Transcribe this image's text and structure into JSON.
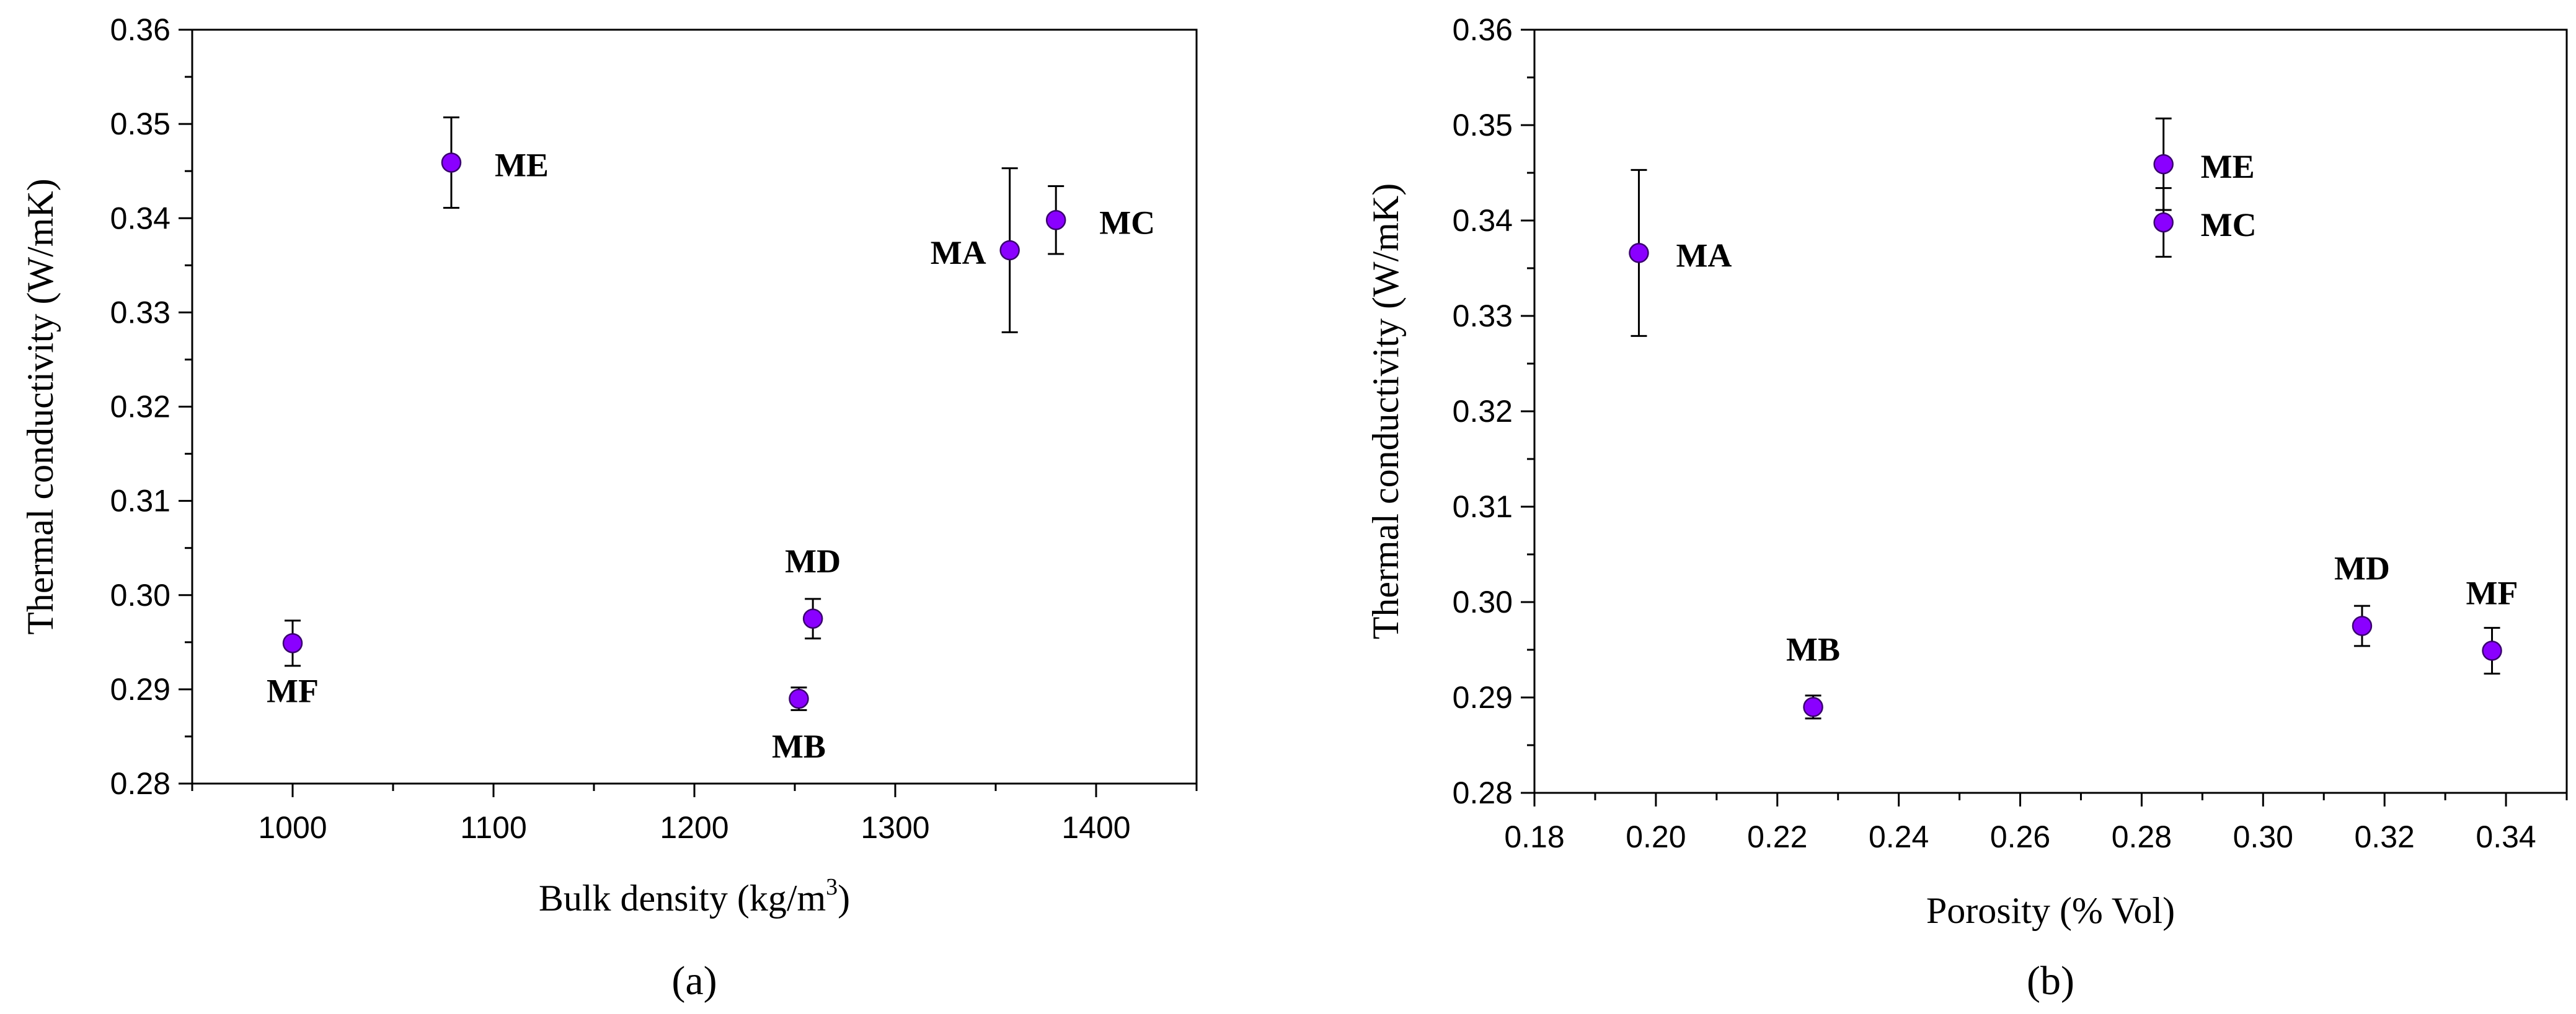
{
  "chart_data": [
    {
      "type": "scatter",
      "panel_label": "(a)",
      "xlabel": "Bulk density (kg/m",
      "xlabel_sup": "3",
      "xlabel_close": ")",
      "ylabel": "Thermal conductivity (W/mK)",
      "xlim": [
        950,
        1450
      ],
      "ylim": [
        0.28,
        0.36
      ],
      "x_ticks": [
        1000,
        1100,
        1200,
        1300,
        1400
      ],
      "x_tick_labels": [
        "1000",
        "1100",
        "1200",
        "1300",
        "1400"
      ],
      "y_ticks": [
        0.28,
        0.29,
        0.3,
        0.31,
        0.32,
        0.33,
        0.34,
        0.35,
        0.36
      ],
      "y_tick_labels": [
        "0.28",
        "0.29",
        "0.30",
        "0.31",
        "0.32",
        "0.33",
        "0.34",
        "0.35",
        "0.36"
      ],
      "marker_color": "#8A00FF",
      "points": [
        {
          "label": "MF",
          "x": 1000,
          "y": 0.2949,
          "err": 0.0024,
          "label_pos": "below"
        },
        {
          "label": "ME",
          "x": 1079,
          "y": 0.3459,
          "err": 0.0048,
          "label_pos": "right"
        },
        {
          "label": "MB",
          "x": 1252,
          "y": 0.289,
          "err": 0.0012,
          "label_pos": "below"
        },
        {
          "label": "MD",
          "x": 1259,
          "y": 0.2975,
          "err": 0.0021,
          "label_pos": "above"
        },
        {
          "label": "MA",
          "x": 1357,
          "y": 0.3366,
          "err": 0.0087,
          "label_pos": "left"
        },
        {
          "label": "MC",
          "x": 1380,
          "y": 0.3398,
          "err": 0.0036,
          "label_pos": "right"
        }
      ]
    },
    {
      "type": "scatter",
      "panel_label": "(b)",
      "xlabel": "Porosity (% Vol)",
      "ylabel": "Thermal conductivity (W/mK)",
      "xlim": [
        0.18,
        0.35
      ],
      "ylim": [
        0.28,
        0.36
      ],
      "x_ticks": [
        0.18,
        0.2,
        0.22,
        0.24,
        0.26,
        0.28,
        0.3,
        0.32,
        0.34
      ],
      "x_tick_labels": [
        "0.18",
        "0.20",
        "0.22",
        "0.24",
        "0.26",
        "0.28",
        "0.30",
        "0.32",
        "0.34"
      ],
      "y_ticks": [
        0.28,
        0.29,
        0.3,
        0.31,
        0.32,
        0.33,
        0.34,
        0.35,
        0.36
      ],
      "y_tick_labels": [
        "0.28",
        "0.29",
        "0.30",
        "0.31",
        "0.32",
        "0.33",
        "0.34",
        "0.35",
        "0.36"
      ],
      "marker_color": "#8A00FF",
      "points": [
        {
          "label": "MA",
          "x": 0.1972,
          "y": 0.3366,
          "err": 0.0087,
          "label_pos": "right"
        },
        {
          "label": "MB",
          "x": 0.2259,
          "y": 0.289,
          "err": 0.0012,
          "label_pos": "above"
        },
        {
          "label": "ME",
          "x": 0.2836,
          "y": 0.3459,
          "err": 0.0048,
          "label_pos": "right"
        },
        {
          "label": "MC",
          "x": 0.2836,
          "y": 0.3398,
          "err": 0.0036,
          "label_pos": "right"
        },
        {
          "label": "MD",
          "x": 0.3163,
          "y": 0.2975,
          "err": 0.0021,
          "label_pos": "above"
        },
        {
          "label": "MF",
          "x": 0.3377,
          "y": 0.2949,
          "err": 0.0024,
          "label_pos": "above"
        }
      ]
    }
  ]
}
